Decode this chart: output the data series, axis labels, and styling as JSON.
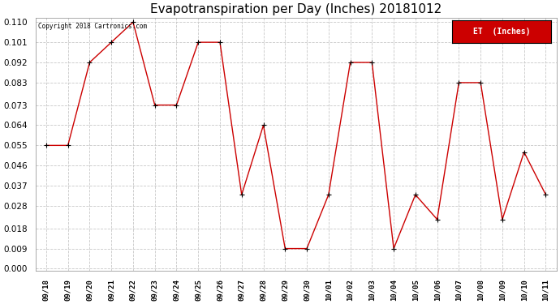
{
  "title": "Evapotranspiration per Day (Inches) 20181012",
  "copyright": "Copyright 2018 Cartronics.com",
  "legend_label": "ET  (Inches)",
  "x_labels": [
    "09/18",
    "09/19",
    "09/20",
    "09/21",
    "09/22",
    "09/23",
    "09/24",
    "09/25",
    "09/26",
    "09/27",
    "09/28",
    "09/29",
    "09/30",
    "10/01",
    "10/02",
    "10/03",
    "10/04",
    "10/05",
    "10/06",
    "10/07",
    "10/08",
    "10/09",
    "10/10",
    "10/11"
  ],
  "y_values": [
    0.055,
    0.055,
    0.092,
    0.101,
    0.11,
    0.073,
    0.073,
    0.101,
    0.101,
    0.033,
    0.064,
    0.009,
    0.009,
    0.033,
    0.092,
    0.092,
    0.009,
    0.033,
    0.022,
    0.083,
    0.083,
    0.022,
    0.052,
    0.033
  ],
  "ylim": [
    0.0,
    0.11
  ],
  "yticks": [
    0.0,
    0.009,
    0.018,
    0.028,
    0.037,
    0.046,
    0.055,
    0.064,
    0.073,
    0.083,
    0.092,
    0.101,
    0.11
  ],
  "line_color": "#cc0000",
  "marker_color": "#000000",
  "background_color": "#ffffff",
  "grid_color": "#c8c8c8",
  "title_fontsize": 11,
  "legend_bg": "#cc0000",
  "legend_fg": "#ffffff"
}
